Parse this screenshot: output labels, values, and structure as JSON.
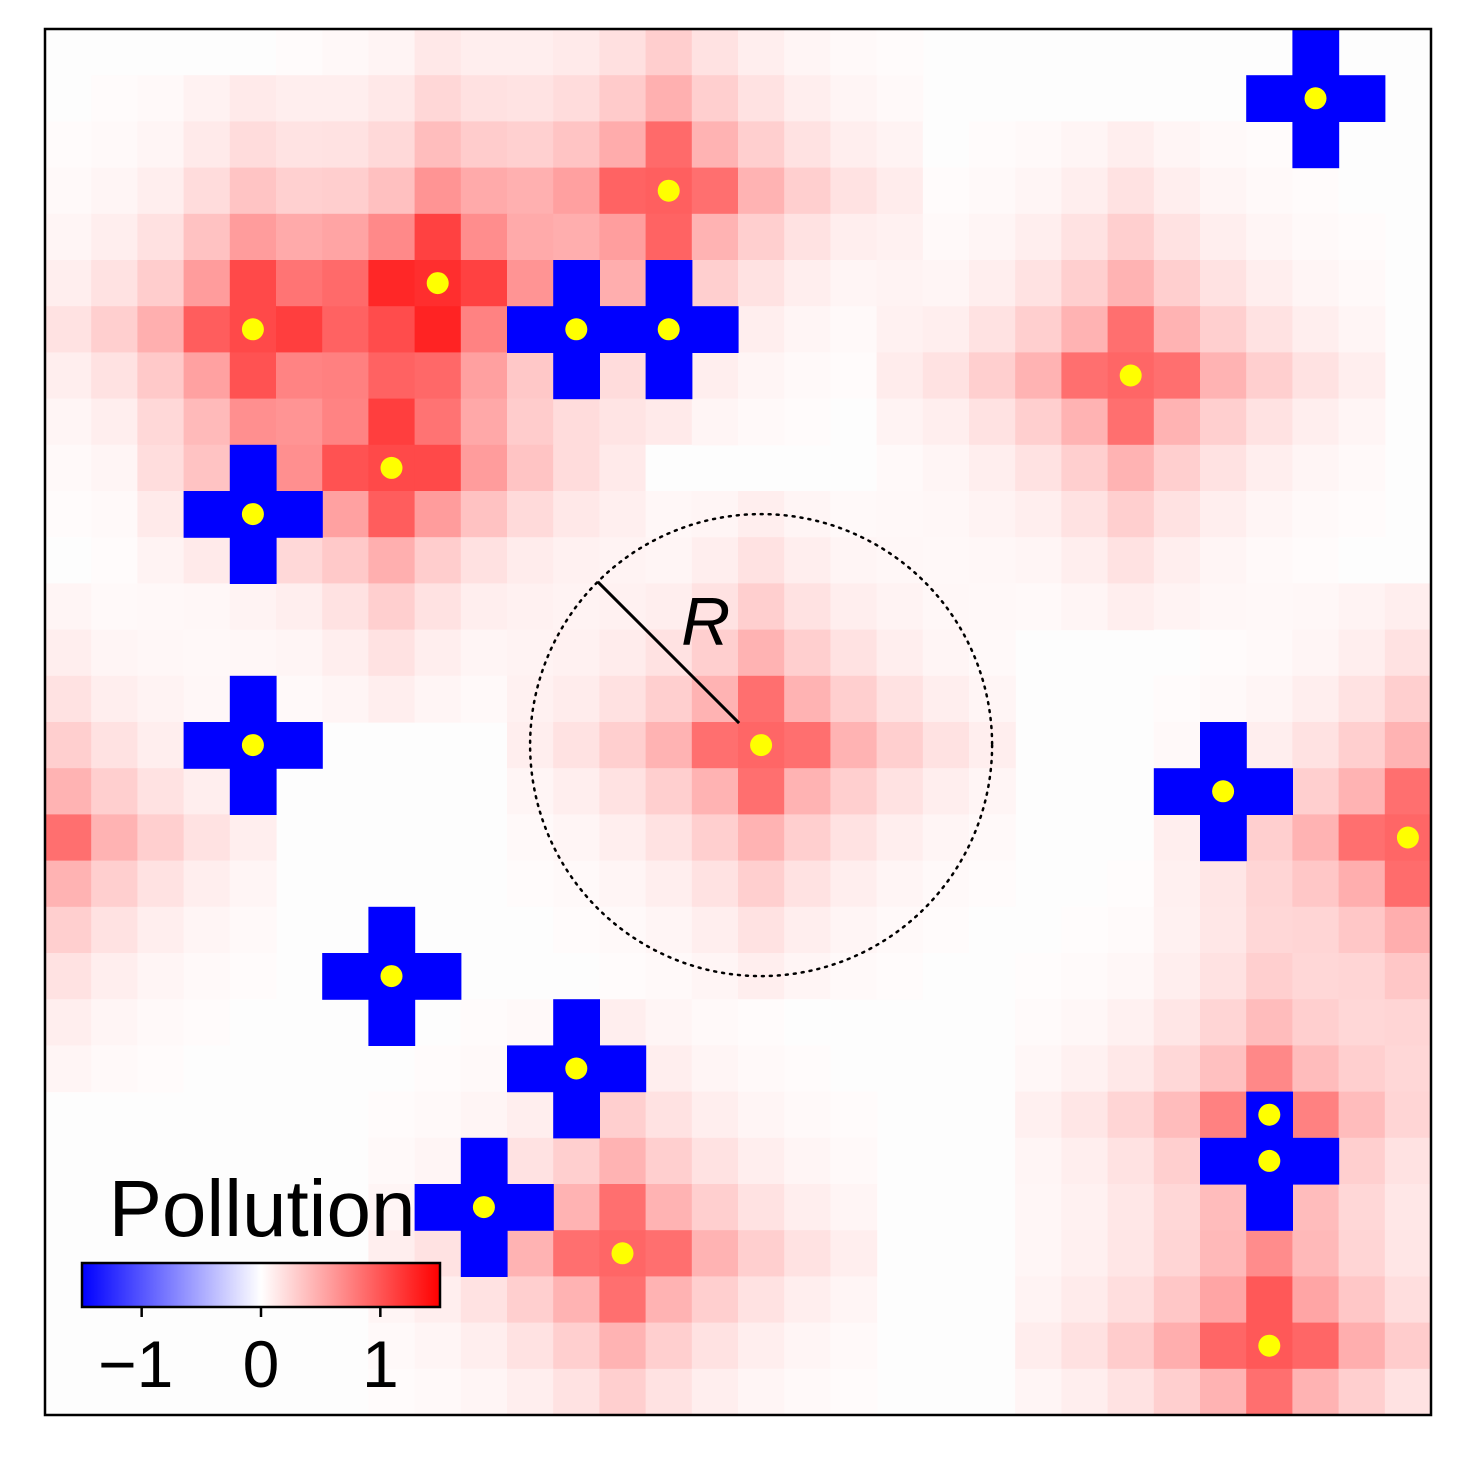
{
  "colorbar": {
    "title": "Pollution",
    "ticks": [
      {
        "value": -1,
        "label": "−1"
      },
      {
        "value": 0,
        "label": "0"
      },
      {
        "value": 1,
        "label": "1"
      }
    ],
    "range": [
      -1.5,
      1.5
    ],
    "colors": {
      "negative": "#0000ff",
      "zero": "#ffffff",
      "positive": "#ff0000"
    }
  },
  "radius_label": "R",
  "grid": {
    "cols": 30,
    "rows": 30
  },
  "agents": {
    "marker_color": "#ffff00",
    "polluters": [
      {
        "col": 13,
        "row": 3,
        "strength": 1.0
      },
      {
        "col": 8,
        "row": 5,
        "strength": 1.1
      },
      {
        "col": 4,
        "row": 6,
        "strength": 1.0
      },
      {
        "col": 7,
        "row": 9,
        "strength": 1.0
      },
      {
        "col": 23,
        "row": 7,
        "strength": 1.0
      },
      {
        "col": 15,
        "row": 15,
        "strength": 1.0
      },
      {
        "col": 29,
        "row": 17,
        "strength": 1.0
      },
      {
        "col": -1,
        "row": 17,
        "strength": 1.0
      },
      {
        "col": 12,
        "row": 26,
        "strength": 1.0
      },
      {
        "col": 26,
        "row": 28,
        "strength": 1.0
      },
      {
        "col": 26,
        "row": 23,
        "strength": 0.8
      }
    ],
    "cleaners": [
      {
        "col": 11,
        "row": 6
      },
      {
        "col": 13,
        "row": 6
      },
      {
        "col": 4,
        "row": 10
      },
      {
        "col": 4,
        "row": 15
      },
      {
        "col": 7,
        "row": 20
      },
      {
        "col": 11,
        "row": 22
      },
      {
        "col": 9,
        "row": 25
      },
      {
        "col": 25,
        "row": 16
      },
      {
        "col": 27,
        "row": 1
      },
      {
        "col": 26,
        "row": 24
      }
    ],
    "dots": [
      {
        "col": 13,
        "row": 3
      },
      {
        "col": 8,
        "row": 5
      },
      {
        "col": 4,
        "row": 6
      },
      {
        "col": 11,
        "row": 6
      },
      {
        "col": 13,
        "row": 6
      },
      {
        "col": 7,
        "row": 9
      },
      {
        "col": 4,
        "row": 10
      },
      {
        "col": 23,
        "row": 7
      },
      {
        "col": 27,
        "row": 1
      },
      {
        "col": 4,
        "row": 15
      },
      {
        "col": 15,
        "row": 15
      },
      {
        "col": 25,
        "row": 16
      },
      {
        "col": 29,
        "row": 17
      },
      {
        "col": 7,
        "row": 20
      },
      {
        "col": 11,
        "row": 22
      },
      {
        "col": 9,
        "row": 25
      },
      {
        "col": 12,
        "row": 26
      },
      {
        "col": 26,
        "row": 23
      },
      {
        "col": 26,
        "row": 24
      },
      {
        "col": 26,
        "row": 28
      }
    ]
  },
  "highlight": {
    "col": 15,
    "row": 15,
    "radius_cells": 5
  }
}
